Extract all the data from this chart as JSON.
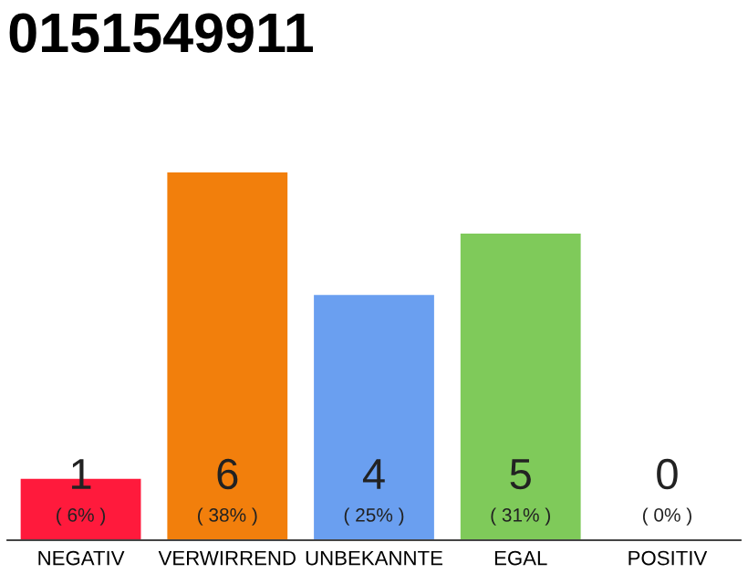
{
  "chart_data": {
    "type": "bar",
    "title": "0151549911",
    "categories": [
      "NEGATIV",
      "VERWIRREND",
      "UNBEKANNTE",
      "EGAL",
      "POSITIV"
    ],
    "values": [
      1,
      6,
      4,
      5,
      0
    ],
    "colors": [
      "#ff1a3c",
      "#f27f0c",
      "#6a9ff0",
      "#7fca5a",
      "#dddddd"
    ],
    "ylim": [
      0,
      6
    ],
    "data_labels": true,
    "annotations": [
      "( 6% )",
      "( 38% )",
      "( 25% )",
      "( 31% )",
      "( 0% )"
    ],
    "grid": false,
    "legend": false
  }
}
